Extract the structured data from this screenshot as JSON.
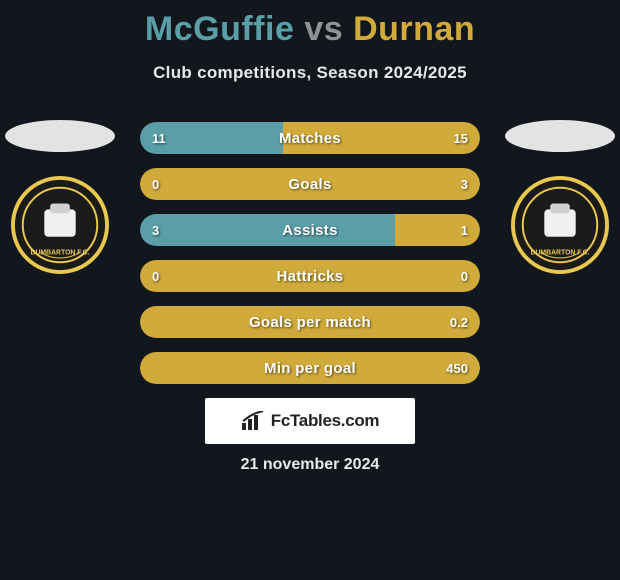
{
  "title": {
    "player1": "McGuffie",
    "vs": "vs",
    "player2": "Durnan"
  },
  "subtitle": "Club competitions, Season 2024/2025",
  "colors": {
    "p1_bar": "#5a9fa8",
    "p2_bar": "#d0aa3a",
    "vs_text": "#8f9296",
    "badge_ring": "#e8c84e",
    "badge_fill": "#1a1a1a"
  },
  "stats": [
    {
      "label": "Matches",
      "left_val": "11",
      "right_val": "15",
      "left_pct": 42,
      "right_pct": 58
    },
    {
      "label": "Goals",
      "left_val": "0",
      "right_val": "3",
      "left_pct": 0,
      "right_pct": 100
    },
    {
      "label": "Assists",
      "left_val": "3",
      "right_val": "1",
      "left_pct": 75,
      "right_pct": 25
    },
    {
      "label": "Hattricks",
      "left_val": "0",
      "right_val": "0",
      "left_pct": 0,
      "right_pct": 100
    },
    {
      "label": "Goals per match",
      "left_val": "",
      "right_val": "0.2",
      "left_pct": 0,
      "right_pct": 100
    },
    {
      "label": "Min per goal",
      "left_val": "",
      "right_val": "450",
      "left_pct": 0,
      "right_pct": 100
    }
  ],
  "brand": "FcTables.com",
  "date": "21 november 2024"
}
